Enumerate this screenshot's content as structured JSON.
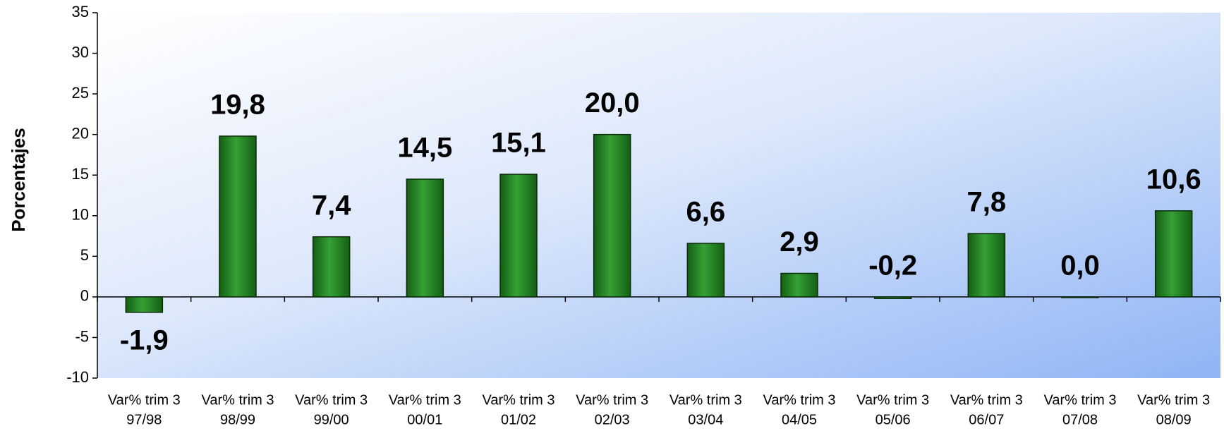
{
  "chart_data": {
    "type": "bar",
    "y_label": "Porcentajes",
    "categories": [
      [
        "Var% trim 3",
        "97/98"
      ],
      [
        "Var% trim 3",
        "98/99"
      ],
      [
        "Var% trim 3",
        "99/00"
      ],
      [
        "Var% trim 3",
        "00/01"
      ],
      [
        "Var% trim 3",
        "01/02"
      ],
      [
        "Var% trim 3",
        "02/03"
      ],
      [
        "Var% trim 3",
        "03/04"
      ],
      [
        "Var% trim 3",
        "04/05"
      ],
      [
        "Var% trim 3",
        "05/06"
      ],
      [
        "Var% trim 3",
        "06/07"
      ],
      [
        "Var% trim 3",
        "07/08"
      ],
      [
        "Var% trim 3",
        "08/09"
      ]
    ],
    "values": [
      -1.9,
      19.8,
      7.4,
      14.5,
      15.1,
      20.0,
      6.6,
      2.9,
      -0.2,
      7.8,
      0.0,
      10.6
    ],
    "value_labels": [
      "-1,9",
      "19,8",
      "7,4",
      "14,5",
      "15,1",
      "20,0",
      "6,6",
      "2,9",
      "-0,2",
      "7,8",
      "0,0",
      "10,6"
    ],
    "color": "#2a8a2a",
    "ylim": [
      -10,
      35
    ],
    "yticks": [
      -10,
      -5,
      0,
      5,
      10,
      15,
      20,
      25,
      30,
      35
    ]
  }
}
